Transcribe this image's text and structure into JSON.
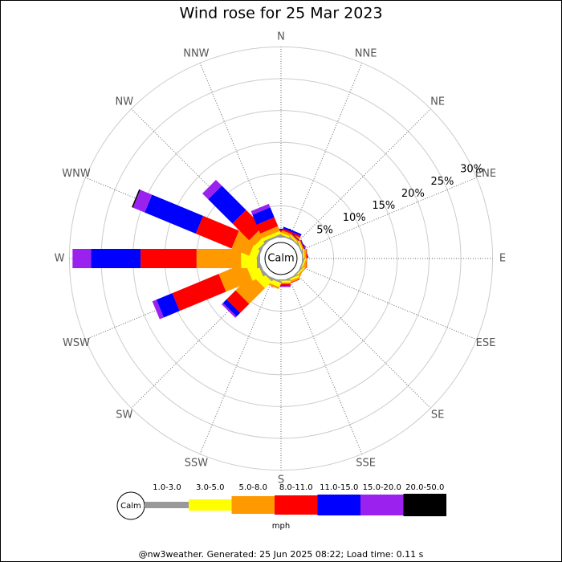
{
  "chart_data": {
    "type": "windrose",
    "title": "Wind rose for 25 Mar 2023",
    "categories": [
      "N",
      "NNE",
      "NE",
      "ENE",
      "E",
      "ESE",
      "SE",
      "SSE",
      "S",
      "SSW",
      "SW",
      "WSW",
      "W",
      "WNW",
      "NW",
      "NNW"
    ],
    "calm_label": "Calm",
    "rlim": [
      0,
      30
    ],
    "rticks": [
      {
        "value": 5,
        "label": "5%"
      },
      {
        "value": 10,
        "label": "10%"
      },
      {
        "value": 15,
        "label": "15%"
      },
      {
        "value": 20,
        "label": "20%"
      },
      {
        "value": 25,
        "label": "25%"
      },
      {
        "value": 30,
        "label": "30%"
      }
    ],
    "units": "mph",
    "series": [
      {
        "name": "1.0-3.0",
        "color": "#999999",
        "values": [
          0.3,
          0.2,
          0.2,
          0.2,
          0.2,
          0.2,
          0.2,
          0.2,
          0.2,
          0.3,
          0.3,
          0.4,
          0.5,
          0.3,
          0.3,
          0.3
        ]
      },
      {
        "name": "3.0-5.0",
        "color": "#ffff00",
        "values": [
          0.3,
          0.3,
          0.2,
          0.2,
          0.2,
          0.2,
          0.2,
          0.3,
          0.3,
          0.7,
          1.5,
          1.8,
          2.5,
          1.2,
          0.8,
          0.5
        ]
      },
      {
        "name": "5.0-8.0",
        "color": "#ff9900",
        "values": [
          0.3,
          0.4,
          0.2,
          0.2,
          0.3,
          0.2,
          0.2,
          0.3,
          0.2,
          0.3,
          3.5,
          4.5,
          7,
          3,
          1.2,
          0.8
        ]
      },
      {
        "name": "8.0-11.0",
        "color": "#ff0000",
        "values": [
          0.3,
          0.3,
          0.1,
          0.1,
          0.1,
          0,
          0,
          0.1,
          0.2,
          0,
          2,
          7.9,
          8.8,
          6.1,
          3.7,
          1.5
        ]
      },
      {
        "name": "11.0-15.0",
        "color": "#0000ff",
        "values": [
          0.2,
          0.3,
          0.1,
          0.1,
          0,
          0,
          0,
          0,
          0.1,
          0,
          0.8,
          2.7,
          7.8,
          8.7,
          5.4,
          1.7
        ]
      },
      {
        "name": "15.0-20.0",
        "color": "#9b22ee",
        "values": [
          0,
          0,
          0,
          0,
          0,
          0,
          0,
          0,
          0.2,
          0,
          0.3,
          0.7,
          2.9,
          2,
          1.3,
          0.6
        ]
      },
      {
        "name": "20.0-50.0",
        "color": "#000000",
        "values": [
          0,
          0,
          0,
          0,
          0,
          0,
          0,
          0,
          0,
          0,
          0,
          0,
          0,
          0.2,
          0,
          0
        ]
      }
    ],
    "footer": "@nw3weather. Generated: 25 Jun 2025 08:22; Load time: 0.11 s"
  }
}
